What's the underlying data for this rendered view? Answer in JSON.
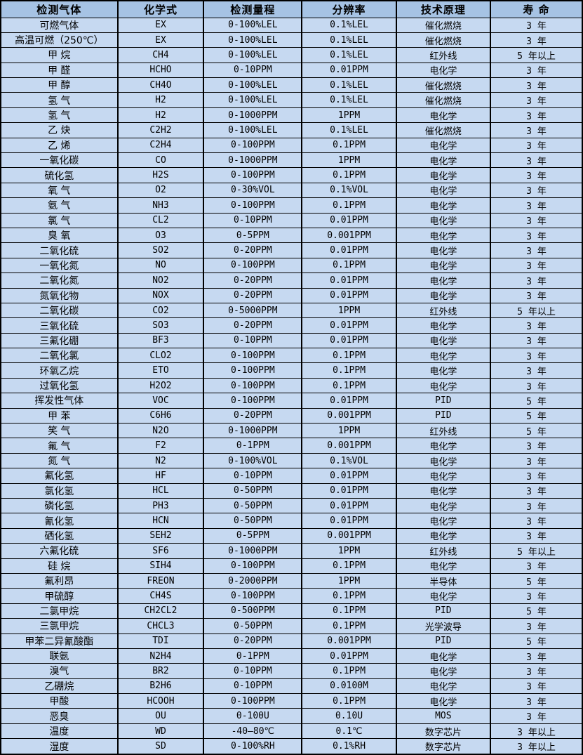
{
  "colors": {
    "header_background": "#a6c3e4",
    "row_background": "#c6d9f1",
    "border": "#000000",
    "text": "#000000"
  },
  "table": {
    "columns": [
      "检测气体",
      "化学式",
      "检测量程",
      "分辨率",
      "技术原理",
      "寿 命"
    ],
    "rows": [
      [
        "可燃气体",
        "EX",
        "0-100%LEL",
        "0.1%LEL",
        "催化燃烧",
        "3 年"
      ],
      [
        "高温可燃（250℃）",
        "EX",
        "0-100%LEL",
        "0.1%LEL",
        "催化燃烧",
        "3 年"
      ],
      [
        "甲 烷",
        "CH4",
        "0-100%LEL",
        "0.1%LEL",
        "红外线",
        "5 年以上"
      ],
      [
        "甲 醛",
        "HCHO",
        "0-10PPM",
        "0.01PPM",
        "电化学",
        "3 年"
      ],
      [
        "甲 醇",
        "CH4O",
        "0-100%LEL",
        "0.1%LEL",
        "催化燃烧",
        "3 年"
      ],
      [
        "氢 气",
        "H2",
        "0-100%LEL",
        "0.1%LEL",
        "催化燃烧",
        "3 年"
      ],
      [
        "氢 气",
        "H2",
        "0-1000PPM",
        "1PPM",
        "电化学",
        "3 年"
      ],
      [
        "乙 炔",
        "C2H2",
        "0-100%LEL",
        "0.1%LEL",
        "催化燃烧",
        "3 年"
      ],
      [
        "乙 烯",
        "C2H4",
        "0-100PPM",
        "0.1PPM",
        "电化学",
        "3 年"
      ],
      [
        "一氧化碳",
        "CO",
        "0-1000PPM",
        "1PPM",
        "电化学",
        "3 年"
      ],
      [
        "硫化氢",
        "H2S",
        "0-100PPM",
        "0.1PPM",
        "电化学",
        "3 年"
      ],
      [
        "氧 气",
        "O2",
        "0-30%VOL",
        "0.1%VOL",
        "电化学",
        "3 年"
      ],
      [
        "氨 气",
        "NH3",
        "0-100PPM",
        "0.1PPM",
        "电化学",
        "3 年"
      ],
      [
        "氯 气",
        "CL2",
        "0-10PPM",
        "0.01PPM",
        "电化学",
        "3 年"
      ],
      [
        "臭 氧",
        "O3",
        "0-5PPM",
        "0.001PPM",
        "电化学",
        "3 年"
      ],
      [
        "二氧化硫",
        "SO2",
        "0-20PPM",
        "0.01PPM",
        "电化学",
        "3 年"
      ],
      [
        "一氧化氮",
        "NO",
        "0-100PPM",
        "0.1PPM",
        "电化学",
        "3 年"
      ],
      [
        "二氧化氮",
        "NO2",
        "0-20PPM",
        "0.01PPM",
        "电化学",
        "3 年"
      ],
      [
        "氮氧化物",
        "NOX",
        "0-20PPM",
        "0.01PPM",
        "电化学",
        "3 年"
      ],
      [
        "二氧化碳",
        "CO2",
        "0-5000PPM",
        "1PPM",
        "红外线",
        "5 年以上"
      ],
      [
        "三氧化硫",
        "SO3",
        "0-20PPM",
        "0.01PPM",
        "电化学",
        "3 年"
      ],
      [
        "三氟化硼",
        "BF3",
        "0-10PPM",
        "0.01PPM",
        "电化学",
        "3 年"
      ],
      [
        "二氧化氯",
        "CLO2",
        "0-100PPM",
        "0.1PPM",
        "电化学",
        "3 年"
      ],
      [
        "环氧乙烷",
        "ETO",
        "0-100PPM",
        "0.1PPM",
        "电化学",
        "3 年"
      ],
      [
        "过氧化氢",
        "H2O2",
        "0-100PPM",
        "0.1PPM",
        "电化学",
        "3 年"
      ],
      [
        "挥发性气体",
        "VOC",
        "0-100PPM",
        "0.01PPM",
        "PID",
        "5 年"
      ],
      [
        "甲 苯",
        "C6H6",
        "0-20PPM",
        "0.001PPM",
        "PID",
        "5 年"
      ],
      [
        "笑 气",
        "N2O",
        "0-1000PPM",
        "1PPM",
        "红外线",
        "5 年"
      ],
      [
        "氟 气",
        "F2",
        "0-1PPM",
        "0.001PPM",
        "电化学",
        "3 年"
      ],
      [
        "氮 气",
        "N2",
        "0-100%VOL",
        "0.1%VOL",
        "电化学",
        "3 年"
      ],
      [
        "氟化氢",
        "HF",
        "0-10PPM",
        "0.01PPM",
        "电化学",
        "3 年"
      ],
      [
        "氯化氢",
        "HCL",
        "0-50PPM",
        "0.01PPM",
        "电化学",
        "3 年"
      ],
      [
        "磷化氢",
        "PH3",
        "0-50PPM",
        "0.01PPM",
        "电化学",
        "3 年"
      ],
      [
        "氰化氢",
        "HCN",
        "0-50PPM",
        "0.01PPM",
        "电化学",
        "3 年"
      ],
      [
        "硒化氢",
        "SEH2",
        "0-5PPM",
        "0.001PPM",
        "电化学",
        "3 年"
      ],
      [
        "六氟化硫",
        "SF6",
        "0-1000PPM",
        "1PPM",
        "红外线",
        "5 年以上"
      ],
      [
        "硅 烷",
        "SIH4",
        "0-100PPM",
        "0.1PPM",
        "电化学",
        "3 年"
      ],
      [
        "氟利昂",
        "FREON",
        "0-2000PPM",
        "1PPM",
        "半导体",
        "5 年"
      ],
      [
        "甲硫醇",
        "CH4S",
        "0-100PPM",
        "0.1PPM",
        "电化学",
        "3 年"
      ],
      [
        "二氯甲烷",
        "CH2CL2",
        "0-500PPM",
        "0.1PPM",
        "PID",
        "5 年"
      ],
      [
        "三氯甲烷",
        "CHCL3",
        "0-50PPM",
        "0.1PPM",
        "光学波导",
        "3 年"
      ],
      [
        "甲苯二异氰酸酯",
        "TDI",
        "0-20PPM",
        "0.001PPM",
        "PID",
        "5 年"
      ],
      [
        "联氨",
        "N2H4",
        "0-1PPM",
        "0.01PPM",
        "电化学",
        "3 年"
      ],
      [
        "溴气",
        "BR2",
        "0-10PPM",
        "0.1PPM",
        "电化学",
        "3 年"
      ],
      [
        "乙硼烷",
        "B2H6",
        "0-10PPM",
        "0.0100M",
        "电化学",
        "3 年"
      ],
      [
        "甲酸",
        "HCOOH",
        "0-100PPM",
        "0.1PPM",
        "电化学",
        "3 年"
      ],
      [
        "恶臭",
        "OU",
        "0-100U",
        "0.10U",
        "MOS",
        "3 年"
      ],
      [
        "温度",
        "WD",
        "-40—80℃",
        "0.1℃",
        "数字芯片",
        "3 年以上"
      ],
      [
        "湿度",
        "SD",
        "0-100%RH",
        "0.1%RH",
        "数字芯片",
        "3 年以上"
      ]
    ]
  }
}
